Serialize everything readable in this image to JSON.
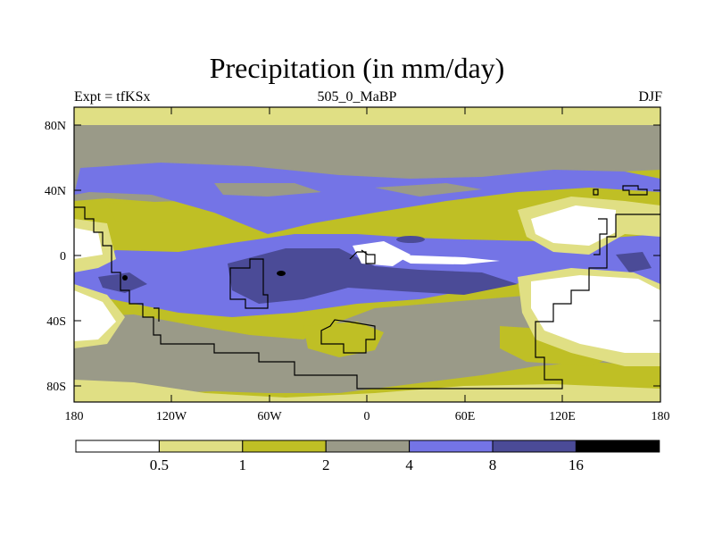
{
  "title": "Precipitation (in mm/day)",
  "subtitle": {
    "left": "Expt = tfKSx",
    "center": "505_0_MaBP",
    "right": "DJF"
  },
  "axes": {
    "y_ticks": [
      "80N",
      "40N",
      "0",
      "40S",
      "80S"
    ],
    "x_ticks": [
      "180",
      "120W",
      "60W",
      "0",
      "60E",
      "120E",
      "180"
    ]
  },
  "colorbar": {
    "colors": [
      "#ffffff",
      "#e0df84",
      "#bfbf25",
      "#9a9a88",
      "#7474e6",
      "#4b4b97",
      "#000000"
    ],
    "labels": [
      "0.5",
      "1",
      "2",
      "4",
      "8",
      "16"
    ]
  }
}
